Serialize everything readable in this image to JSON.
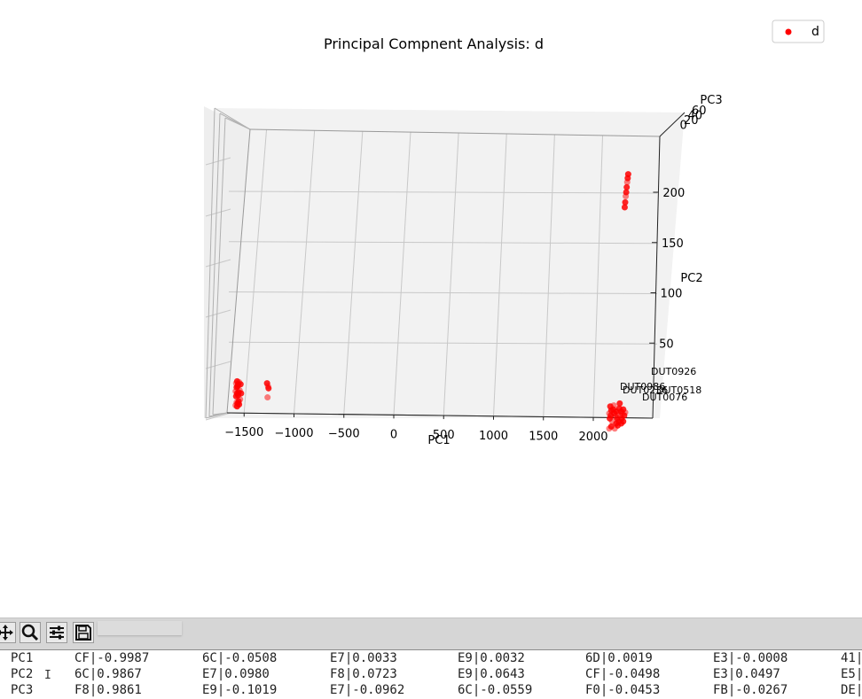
{
  "chart_data": {
    "type": "scatter",
    "projection": "3d",
    "title": "Principal Compnent Analysis: d",
    "xlabel": "PC1",
    "ylabel": "PC2",
    "zlabel": "PC3",
    "x_ticks": [
      "−1500",
      "−1000",
      "−500",
      "0",
      "500",
      "1000",
      "1500",
      "2000"
    ],
    "y_ticks": [
      "50",
      "100",
      "150",
      "200"
    ],
    "z_ticks": [
      "60",
      "40",
      "20",
      "0"
    ],
    "legend": {
      "entries": [
        "d"
      ],
      "position": "top-right"
    },
    "series": [
      {
        "name": "d",
        "color": "#ff0000",
        "points": [
          [
            -1580,
            10
          ],
          [
            -1570,
            12
          ],
          [
            -1560,
            9
          ],
          [
            -1550,
            11
          ],
          [
            -1575,
            6
          ],
          [
            -1565,
            7
          ],
          [
            -1585,
            2
          ],
          [
            -1570,
            0
          ],
          [
            -1555,
            1
          ],
          [
            -1545,
            3
          ],
          [
            -1580,
            -3
          ],
          [
            -1560,
            -2
          ],
          [
            -1575,
            -9
          ],
          [
            -1565,
            -10
          ],
          [
            -1555,
            -8
          ],
          [
            -1585,
            -12
          ],
          [
            -1570,
            -13
          ],
          [
            -1550,
            -11
          ],
          [
            -1540,
            -6
          ],
          [
            -1530,
            0
          ],
          [
            -1535,
            9
          ],
          [
            -1260,
            7
          ],
          [
            -1255,
            5
          ],
          [
            -1270,
            10
          ],
          [
            -1265,
            -4
          ],
          [
            2170,
            -13
          ],
          [
            2180,
            -17
          ],
          [
            2160,
            -20
          ],
          [
            2175,
            -22
          ],
          [
            2165,
            -25
          ],
          [
            2190,
            -28
          ],
          [
            2200,
            -16
          ],
          [
            2210,
            -20
          ],
          [
            2220,
            -23
          ],
          [
            2230,
            -18
          ],
          [
            2240,
            -25
          ],
          [
            2250,
            -20
          ],
          [
            2260,
            -15
          ],
          [
            2255,
            -28
          ],
          [
            2270,
            -22
          ],
          [
            2280,
            -18
          ],
          [
            2285,
            -25
          ],
          [
            2290,
            -20
          ],
          [
            2300,
            -16
          ],
          [
            2310,
            -22
          ],
          [
            2320,
            -19
          ],
          [
            2300,
            -28
          ],
          [
            2245,
            -32
          ],
          [
            2215,
            -35
          ],
          [
            2180,
            -33
          ],
          [
            2230,
            -30
          ],
          [
            2205,
            -12
          ],
          [
            2265,
            -10
          ],
          [
            2280,
            -30
          ],
          [
            2160,
            -35
          ],
          [
            2350,
            218
          ],
          [
            2345,
            214
          ],
          [
            2340,
            210
          ],
          [
            2335,
            205
          ],
          [
            2330,
            200
          ],
          [
            2325,
            196
          ],
          [
            2320,
            190
          ],
          [
            2315,
            185
          ]
        ],
        "annotations": [
          "DUT0926",
          "DUT0986",
          "DUT0236",
          "DUT0518",
          "DUT0076"
        ]
      }
    ],
    "grid": true
  },
  "toolbar": {
    "icons": [
      "move-icon",
      "zoom-icon",
      "configure-icon",
      "save-icon"
    ]
  },
  "loadings_table": [
    {
      "label": "PC1",
      "cells": [
        "CF|-0.9987",
        "6C|-0.0508",
        "E7|0.0033",
        "E9|0.0032",
        "6D|0.0019",
        "E3|-0.0008",
        "41|"
      ]
    },
    {
      "label": "PC2",
      "cells": [
        "6C|0.9867",
        "E7|0.0980",
        "F8|0.0723",
        "E9|0.0643",
        "CF|-0.0498",
        "E3|0.0497",
        "E5|"
      ]
    },
    {
      "label": "PC3",
      "cells": [
        "F8|0.9861",
        "E9|-0.1019",
        "E7|-0.0962",
        "6C|-0.0559",
        "F0|-0.0453",
        "FB|-0.0267",
        "DE|"
      ]
    }
  ]
}
